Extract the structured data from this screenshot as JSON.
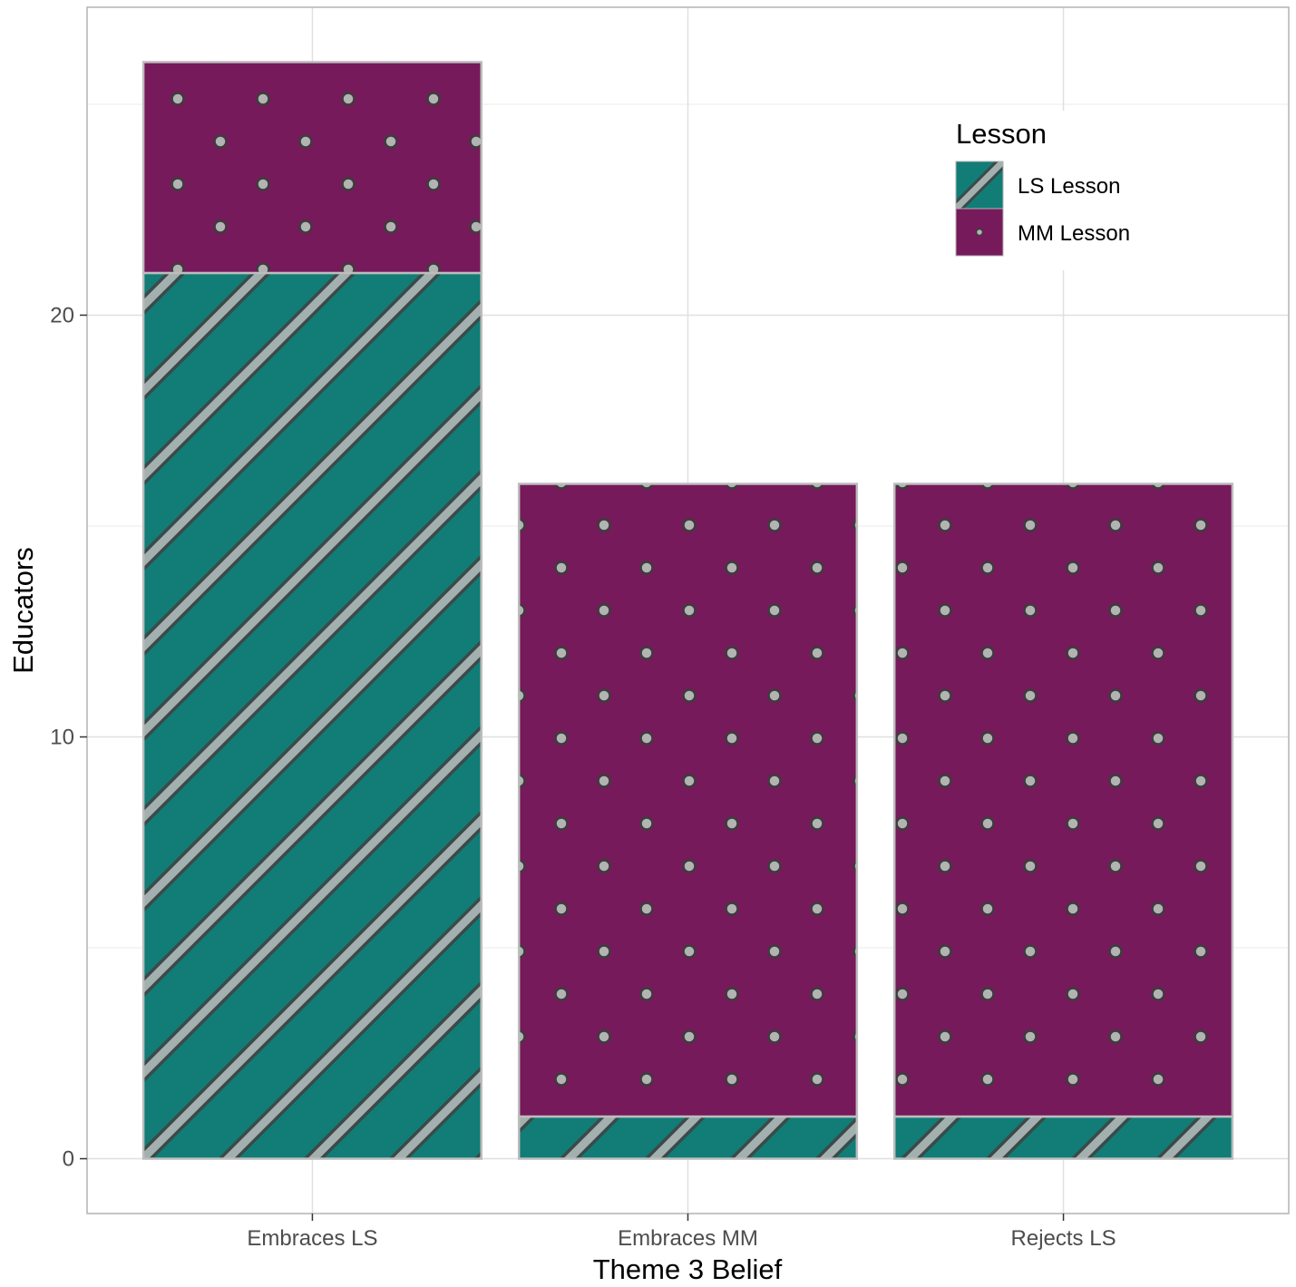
{
  "chart_data": {
    "type": "bar",
    "stacked": true,
    "categories": [
      "Embraces LS",
      "Embraces MM",
      "Rejects LS"
    ],
    "series": [
      {
        "name": "LS Lesson",
        "values": [
          21,
          1,
          1
        ],
        "color": "#127c77",
        "pattern": "stripes"
      },
      {
        "name": "MM Lesson",
        "values": [
          5,
          15,
          15
        ],
        "color": "#761a5b",
        "pattern": "dots"
      }
    ],
    "xlabel": "Theme 3 Belief",
    "ylabel": "Educators",
    "ylim": [
      -1.3,
      27.3
    ],
    "yticks": [
      0,
      10,
      20
    ],
    "legend": {
      "title": "Lesson",
      "position": "top-right-inside"
    },
    "grid": true
  }
}
